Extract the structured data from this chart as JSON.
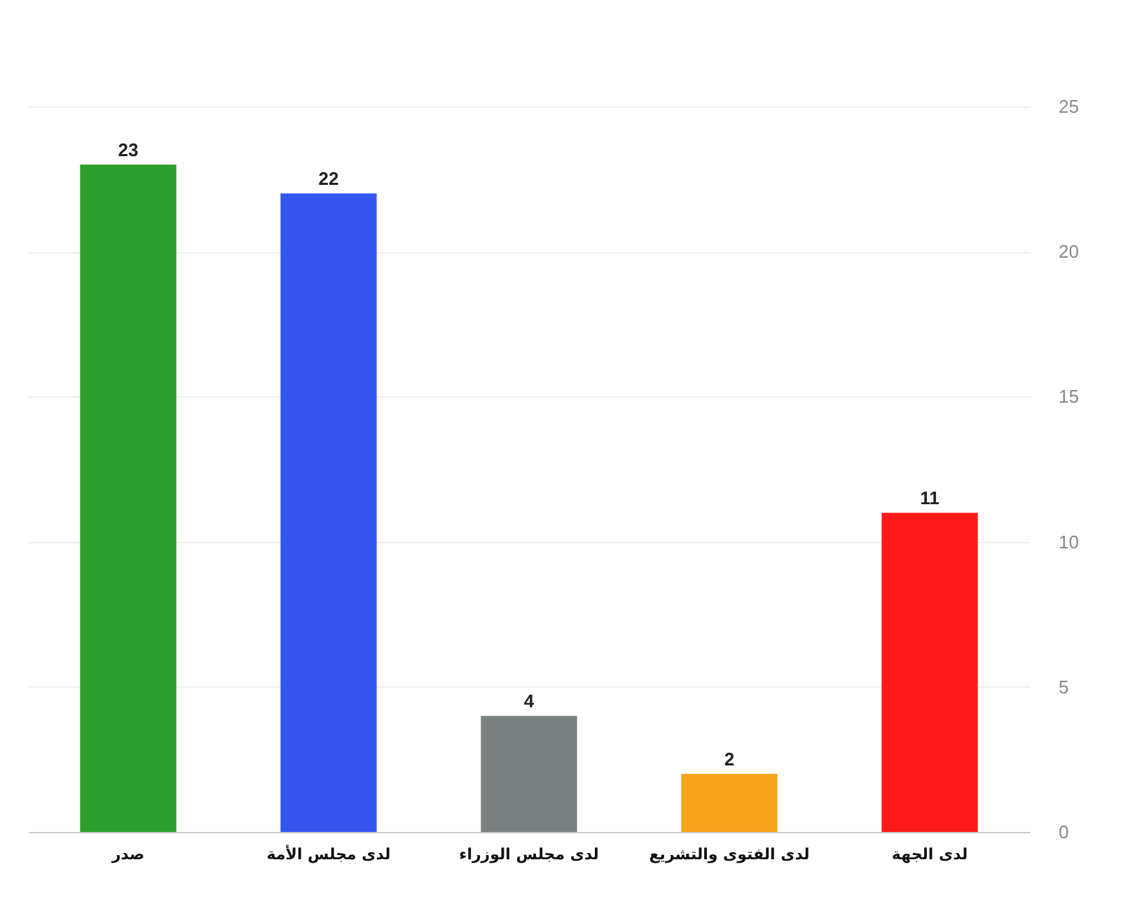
{
  "chart_data": {
    "type": "bar",
    "categories": [
      "صدر",
      "لدى مجلس الأمة",
      "لدى مجلس الوزراء",
      "لدى الفتوى والتشريع",
      "لدى الجهة"
    ],
    "values": [
      23,
      22,
      4,
      2,
      11
    ],
    "colors": [
      "#2ca02c",
      "#3355ee",
      "#7a7f80",
      "#f7a21b",
      "#ff1a1a"
    ],
    "ylim": [
      0,
      25
    ],
    "yticks": [
      0,
      5,
      10,
      15,
      20,
      25
    ],
    "grid": "y",
    "data_labels": true
  }
}
